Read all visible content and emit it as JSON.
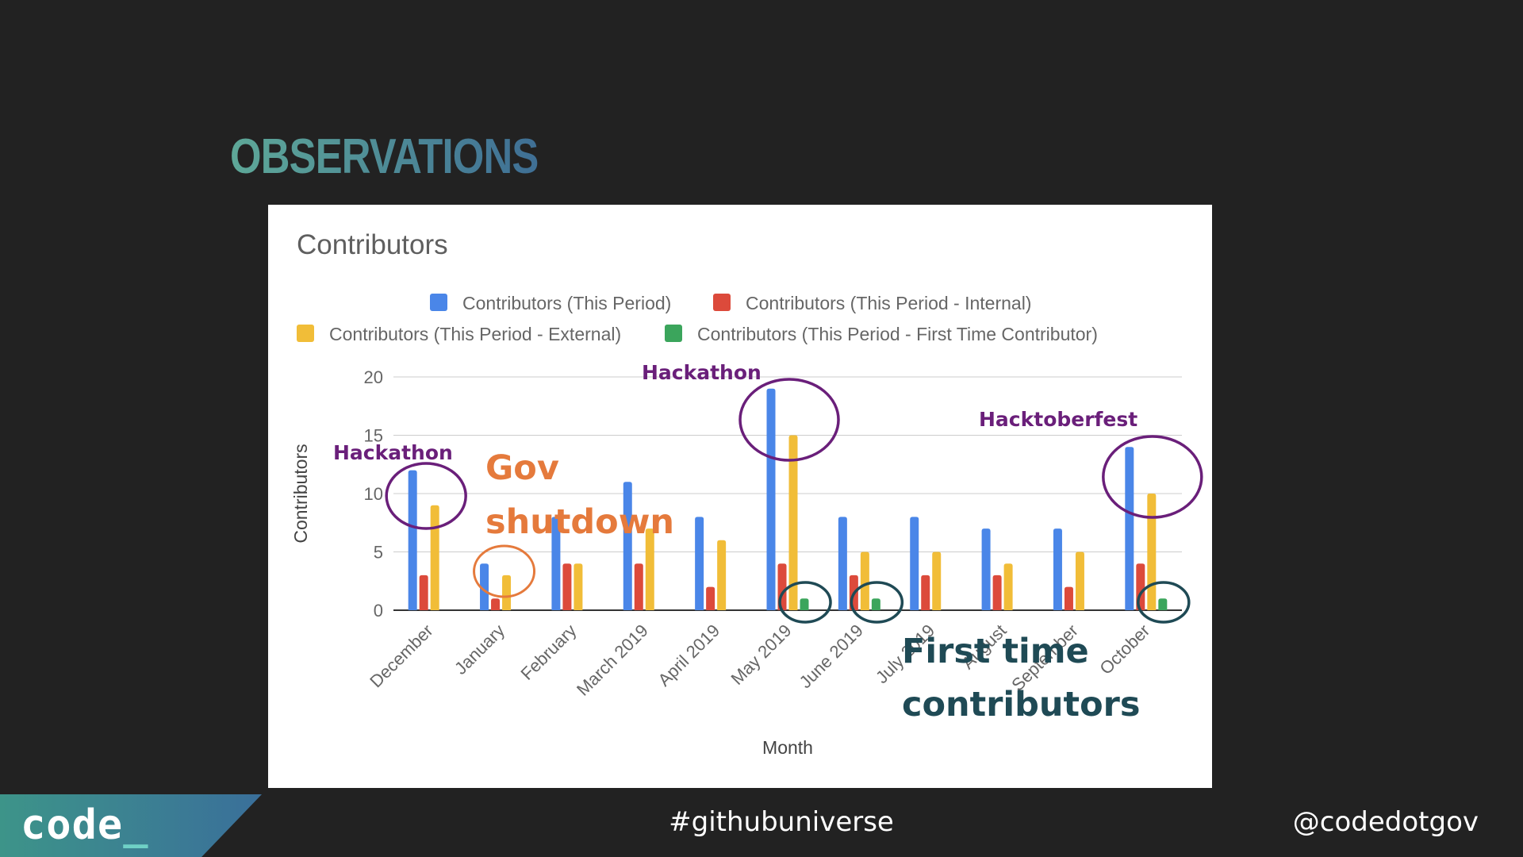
{
  "slide": {
    "title": "OBSERVATIONS"
  },
  "footer": {
    "logo_text": "code",
    "logo_cursor": "_",
    "hashtag": "#githubuniverse",
    "handle": "@codedotgov"
  },
  "chart_data": {
    "type": "bar",
    "title": "Contributors",
    "xlabel": "Month",
    "ylabel": "Contributors",
    "ylim": [
      0,
      20
    ],
    "yticks": [
      0,
      5,
      10,
      15,
      20
    ],
    "grid": true,
    "legend_position": "top",
    "categories": [
      "December",
      "January",
      "February",
      "March 2019",
      "April 2019",
      "May 2019",
      "June 2019",
      "July 2019",
      "August",
      "September",
      "October"
    ],
    "series": [
      {
        "name": "Contributors (This Period)",
        "color": "#4a86e8",
        "values": [
          12,
          4,
          8,
          11,
          8,
          19,
          8,
          8,
          7,
          7,
          14
        ]
      },
      {
        "name": "Contributors (This Period - Internal)",
        "color": "#dc4a3b",
        "values": [
          3,
          1,
          4,
          4,
          2,
          4,
          3,
          3,
          3,
          2,
          4
        ]
      },
      {
        "name": "Contributors (This Period - External)",
        "color": "#f1bd38",
        "values": [
          9,
          3,
          4,
          7,
          6,
          15,
          5,
          5,
          4,
          5,
          10
        ]
      },
      {
        "name": "Contributors (This Period - First Time Contributor)",
        "color": "#3ba55c",
        "values": [
          0,
          0,
          0,
          0,
          0,
          1,
          1,
          0,
          0,
          0,
          1
        ]
      }
    ],
    "annotations": [
      {
        "text": "Hackathon",
        "color": "#6a1f7a",
        "category": "December"
      },
      {
        "text": "Gov shutdown",
        "color": "#e57a3c",
        "category": "January"
      },
      {
        "text": "Hackathon",
        "color": "#6a1f7a",
        "category": "May 2019"
      },
      {
        "text": "Hacktoberfest",
        "color": "#6a1f7a",
        "category": "October"
      },
      {
        "text": "First time contributors",
        "color": "#1f4a55",
        "categories": [
          "May 2019",
          "June 2019",
          "October"
        ]
      }
    ]
  }
}
